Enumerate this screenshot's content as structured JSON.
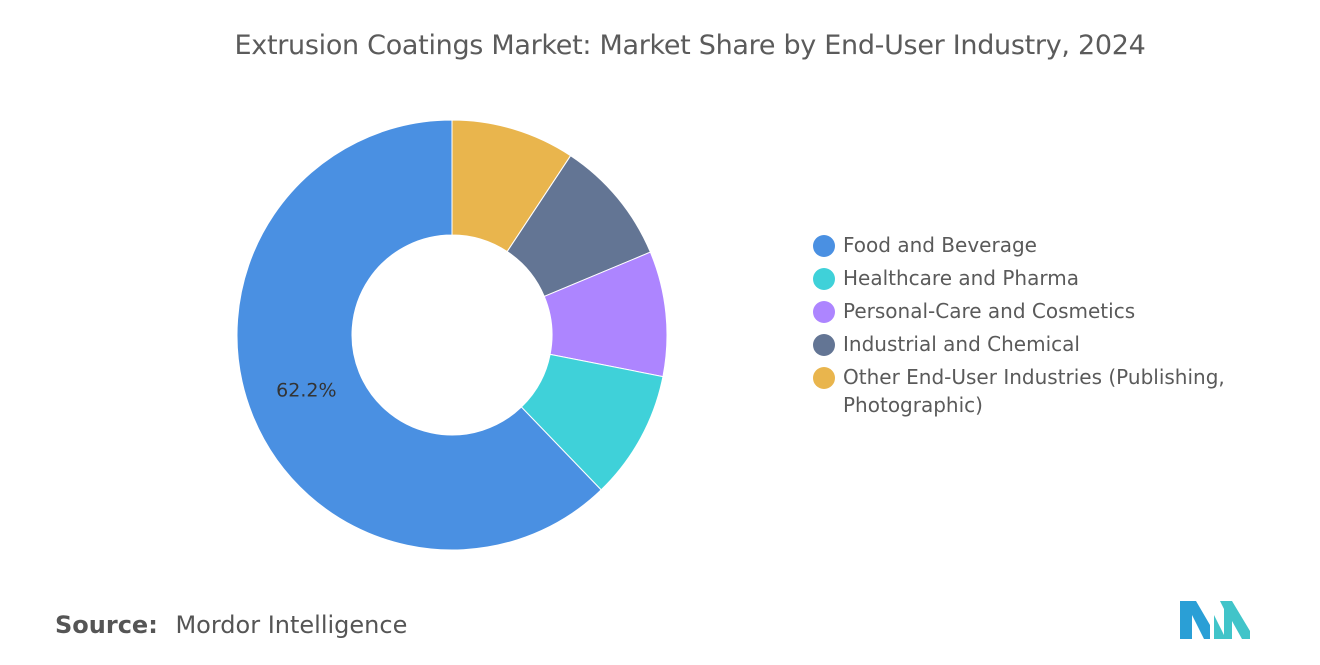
{
  "title": "Extrusion Coatings Market: Market Share by End-User Industry, 2024",
  "chart_data": {
    "type": "pie",
    "donut": true,
    "title": "Extrusion Coatings Market: Market Share by End-User Industry, 2024",
    "categories": [
      "Food and Beverage",
      "Healthcare and Pharma",
      "Personal-Care and Cosmetics",
      "Industrial and Chemical",
      "Other End-User Industries (Publishing, Photographic)"
    ],
    "values": [
      62.2,
      9.7,
      9.4,
      9.4,
      9.3
    ],
    "colors": [
      "#4a90e2",
      "#3fd1d9",
      "#ad85ff",
      "#637594",
      "#e9b54d"
    ],
    "data_labels": [
      "62.2%",
      "",
      "",
      "",
      ""
    ],
    "legend_position": "right"
  },
  "legend": [
    {
      "label": "Food and Beverage",
      "color": "#4a90e2"
    },
    {
      "label": "Healthcare and Pharma",
      "color": "#3fd1d9"
    },
    {
      "label": "Personal-Care and Cosmetics",
      "color": "#ad85ff"
    },
    {
      "label": "Industrial and Chemical",
      "color": "#637594"
    },
    {
      "label": "Other End-User Industries (Publishing, Photographic)",
      "color": "#e9b54d"
    }
  ],
  "source": {
    "key": "Source:",
    "value": "Mordor Intelligence"
  },
  "logo_icon": "mordor-intelligence-logo",
  "logo_colors": [
    "#2a9fd6",
    "#41c4c9"
  ]
}
